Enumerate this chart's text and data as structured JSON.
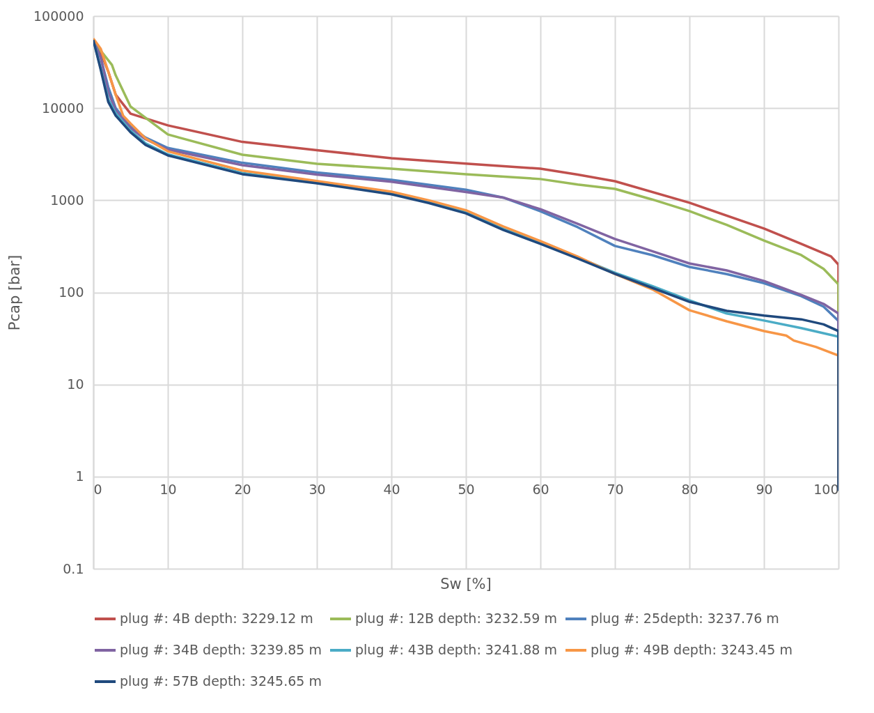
{
  "chart_data": {
    "type": "line",
    "xlabel": "Sw [%]",
    "ylabel": "Pcap [bar]",
    "log": "y",
    "grid": true,
    "legend": "bottom",
    "marker": "none",
    "line_style": "solid",
    "xlim": [
      0,
      100
    ],
    "xticks": [
      0,
      10,
      20,
      30,
      40,
      50,
      60,
      70,
      80,
      90,
      100
    ],
    "ylim": [
      0.1,
      100000
    ],
    "yticks": [
      0.1,
      1,
      10,
      100,
      1000,
      10000,
      100000
    ],
    "series": [
      {
        "name": "plug #: 4B depth: 3229.12 m",
        "color": "#c0504d",
        "x": [
          0,
          1,
          2,
          3,
          5,
          10,
          20,
          30,
          40,
          50,
          60,
          65,
          70,
          80,
          90,
          95,
          99,
          100,
          100
        ],
        "values": [
          55000,
          40000,
          25000,
          14000,
          8700,
          6500,
          4300,
          3500,
          2860,
          2500,
          2200,
          1900,
          1610,
          940,
          493,
          336,
          246,
          200,
          0.7
        ]
      },
      {
        "name": "plug #: 12B depth: 3232.59 m",
        "color": "#9bbb59",
        "x": [
          0,
          1,
          2.5,
          3,
          5,
          10,
          20,
          30,
          40,
          50,
          60,
          65,
          70,
          75,
          80,
          85,
          90,
          95,
          98,
          100,
          100
        ],
        "values": [
          55000,
          42000,
          29500,
          22700,
          10400,
          5180,
          3120,
          2490,
          2200,
          1920,
          1700,
          1480,
          1330,
          1020,
          762,
          540,
          366,
          254,
          180,
          122,
          0.7
        ]
      },
      {
        "name": "plug #: 25depth: 3237.76 m",
        "color": "#4f81bd",
        "x": [
          0,
          1,
          2,
          3,
          5,
          7,
          10,
          20,
          30,
          40,
          50,
          55,
          60,
          65,
          70,
          75,
          80,
          85,
          90,
          95,
          98,
          100,
          100
        ],
        "values": [
          55000,
          35000,
          17000,
          10000,
          6300,
          4800,
          3700,
          2550,
          2000,
          1670,
          1300,
          1070,
          760,
          510,
          319,
          254,
          189,
          158,
          126,
          91,
          70,
          49,
          0.7
        ]
      },
      {
        "name": "plug #: 34B depth: 3239.85 m",
        "color": "#8064a2",
        "x": [
          0,
          1,
          2,
          3,
          5,
          7,
          10,
          20,
          30,
          40,
          50,
          55,
          60,
          65,
          70,
          75,
          80,
          85,
          90,
          95,
          98,
          100,
          100
        ],
        "values": [
          55000,
          35000,
          15000,
          9500,
          6100,
          4600,
          3550,
          2400,
          1900,
          1590,
          1230,
          1070,
          800,
          555,
          380,
          280,
          206,
          173,
          133,
          94,
          75,
          59,
          0.7
        ]
      },
      {
        "name": "plug #: 43B depth: 3241.88 m",
        "color": "#4bacc6",
        "x": [
          0,
          1,
          2,
          3,
          5,
          7,
          10,
          20,
          30,
          40,
          45,
          50,
          55,
          60,
          65,
          70,
          75,
          80,
          85,
          90,
          95,
          100,
          100
        ],
        "values": [
          55000,
          27000,
          12500,
          8800,
          5700,
          4150,
          3150,
          1980,
          1570,
          1190,
          960,
          740,
          490,
          345,
          240,
          163,
          117,
          82,
          59,
          49.5,
          41,
          33,
          0.7
        ]
      },
      {
        "name": "plug #: 49B depth: 3243.45 m",
        "color": "#f79646",
        "x": [
          0,
          1,
          2,
          3,
          4,
          5,
          7,
          10,
          20,
          30,
          40,
          45,
          50,
          55,
          60,
          65,
          70,
          75,
          80,
          85,
          90,
          93,
          94,
          97,
          100,
          100
        ],
        "values": [
          57000,
          44000,
          25000,
          14000,
          8300,
          6800,
          4700,
          3400,
          2100,
          1620,
          1240,
          1000,
          780,
          520,
          360,
          245,
          158,
          108,
          64,
          48.5,
          38,
          34,
          30,
          25.5,
          20.6,
          0.7
        ]
      },
      {
        "name": "plug #: 57B depth: 3245.65 m",
        "color": "#1f497d",
        "x": [
          0,
          1,
          2,
          3,
          5,
          7,
          10,
          20,
          30,
          40,
          45,
          50,
          55,
          60,
          65,
          70,
          75,
          80,
          85,
          90,
          95,
          98,
          100,
          100
        ],
        "values": [
          55000,
          26000,
          11700,
          8300,
          5460,
          3990,
          3070,
          1920,
          1530,
          1160,
          935,
          720,
          476,
          336,
          233,
          159,
          112,
          79,
          63,
          56,
          51,
          45,
          38,
          0.7
        ]
      }
    ]
  }
}
